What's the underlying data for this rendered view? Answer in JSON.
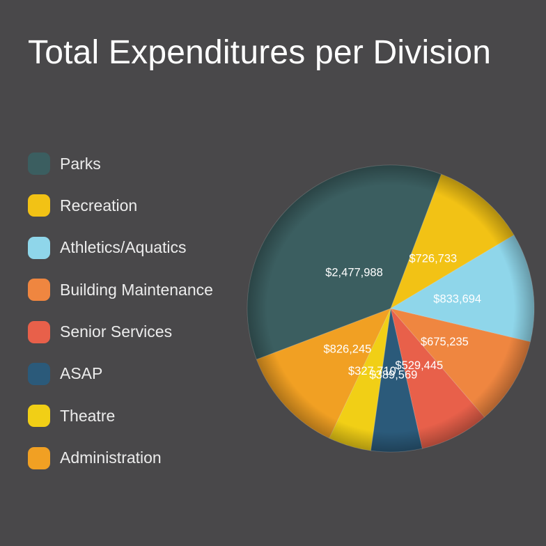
{
  "chart_data": {
    "type": "pie",
    "title": "Total Expenditures per Division",
    "categories": [
      "Parks",
      "Recreation",
      "Athletics/Aquatics",
      "Building Maintenance",
      "Senior Services",
      "ASAP",
      "Theatre",
      "Administration"
    ],
    "values": [
      2477988,
      726733,
      833694,
      675235,
      529445,
      389569,
      327710,
      826245
    ],
    "value_labels": [
      "$2,477,988",
      "$726,733",
      "$833,694",
      "$675,235",
      "$529,445",
      "$389,569",
      "$327,710",
      "$826,245"
    ],
    "colors": [
      "#3b5e60",
      "#f2c215",
      "#8fd6ea",
      "#ef8640",
      "#e8604a",
      "#2b5a7a",
      "#f1cf16",
      "#f1a023"
    ],
    "legend_position": "left"
  }
}
